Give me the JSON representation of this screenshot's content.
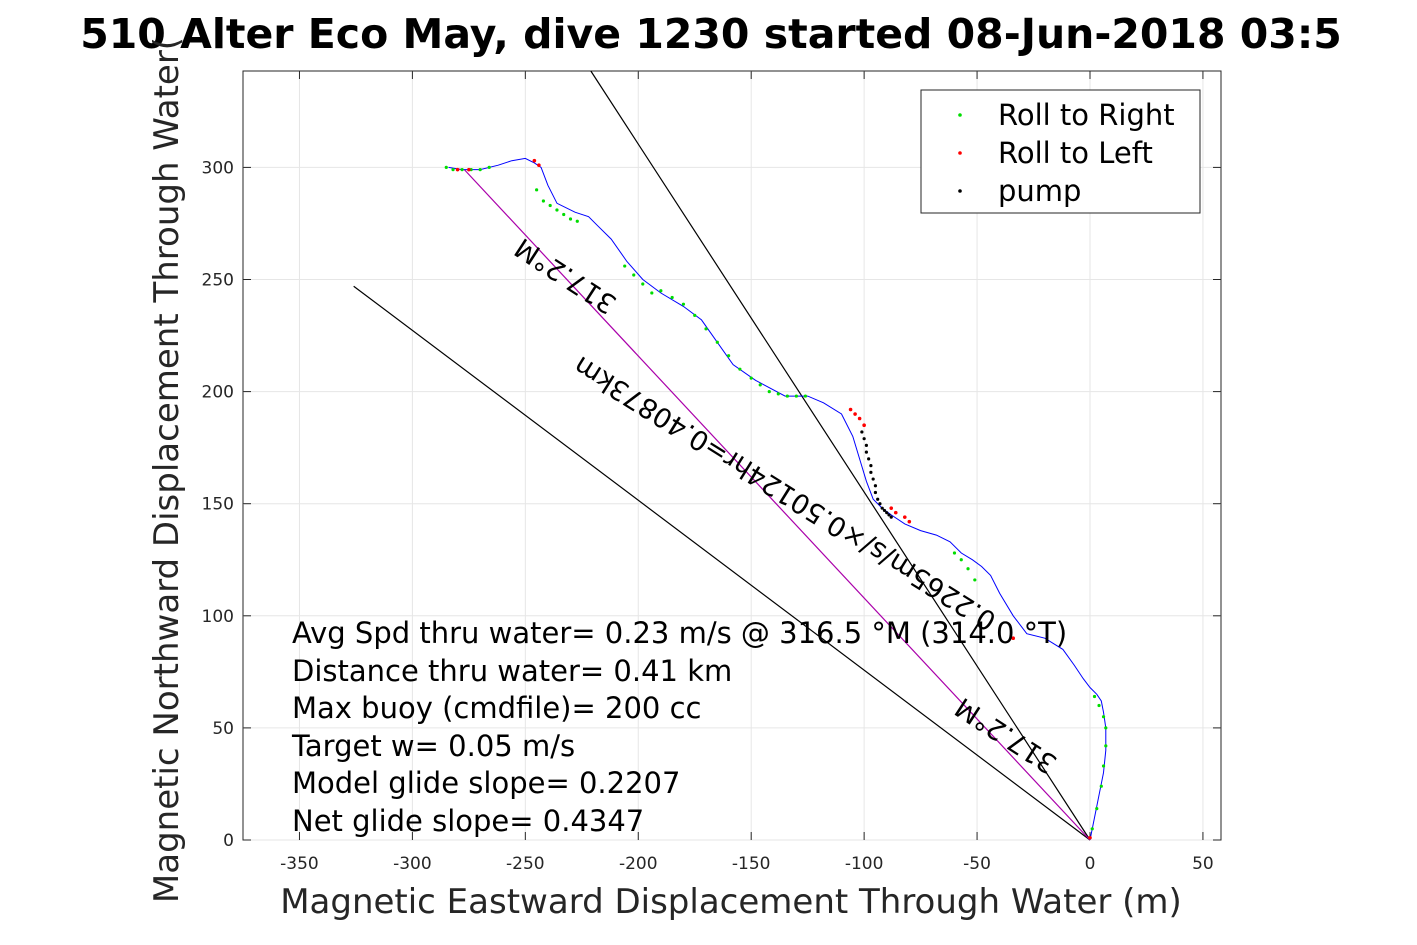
{
  "chart_data": {
    "type": "line",
    "title": "510 Alter Eco May, dive 1230 started 08-Jun-2018 03:5",
    "xlabel": "Magnetic Eastward Displacement Through Water (m)",
    "ylabel": "Magnetic Northward Displacement Through Water(",
    "xlim": [
      -375,
      58
    ],
    "ylim": [
      0,
      343
    ],
    "xticks": [
      -350,
      -300,
      -250,
      -200,
      -150,
      -100,
      -50,
      0,
      50
    ],
    "yticks": [
      0,
      50,
      100,
      150,
      200,
      250,
      300
    ],
    "xtick_labels": [
      "-350",
      "-300",
      "-250",
      "-200",
      "-150",
      "-100",
      "-50",
      "0",
      "50"
    ],
    "ytick_labels": [
      "0",
      "50",
      "100",
      "150",
      "200",
      "250",
      "300"
    ],
    "grid": true,
    "legend": {
      "location": "top-right",
      "entries": [
        {
          "label": "Roll to Right",
          "color": "#00dd00"
        },
        {
          "label": "Roll to Left",
          "color": "#ff0000"
        },
        {
          "label": "pump",
          "color": "#000000"
        }
      ]
    },
    "track": {
      "color": "#0000ff",
      "x": [
        0,
        2,
        4,
        6,
        7,
        7,
        6,
        5,
        3,
        0,
        -3,
        -7,
        -12,
        -20,
        -28,
        -34,
        -40,
        -44,
        -48,
        -52,
        -57,
        -62,
        -68,
        -75,
        -82,
        -88,
        -92,
        -96,
        -99,
        -102,
        -105,
        -110,
        -118,
        -125,
        -135,
        -148,
        -158,
        -165,
        -172,
        -180,
        -190,
        -198,
        -205,
        -212,
        -218,
        -222,
        -228,
        -236,
        -240,
        -243,
        -246,
        -250,
        -256,
        -262,
        -270,
        -278,
        -284
      ],
      "y": [
        0,
        10,
        20,
        30,
        40,
        50,
        57,
        62,
        65,
        68,
        72,
        78,
        85,
        90,
        92,
        100,
        110,
        118,
        122,
        125,
        128,
        133,
        136,
        138,
        141,
        145,
        148,
        152,
        160,
        170,
        180,
        190,
        195,
        198,
        198,
        205,
        212,
        222,
        232,
        238,
        244,
        250,
        258,
        268,
        274,
        278,
        280,
        284,
        292,
        300,
        302,
        304,
        303,
        301,
        299,
        299,
        300
      ]
    },
    "markers": {
      "roll_right": {
        "color": "#00dd00",
        "x": [
          1,
          3,
          5,
          6,
          7,
          7,
          6,
          4,
          2,
          -60,
          -57,
          -54,
          -51,
          -190,
          -185,
          -180,
          -175,
          -170,
          -165,
          -160,
          -155,
          -150,
          -146,
          -142,
          -138,
          -134,
          -130,
          -126,
          -245,
          -242,
          -239,
          -236,
          -233,
          -230,
          -227,
          -266,
          -270,
          -274,
          -278,
          -282,
          -285,
          -206,
          -202,
          -198,
          -194
        ],
        "y": [
          5,
          14,
          24,
          33,
          42,
          50,
          55,
          60,
          64,
          128,
          125,
          121,
          116,
          245,
          242,
          239,
          234,
          228,
          222,
          216,
          210,
          206,
          203,
          200,
          199,
          198,
          198,
          198,
          290,
          285,
          283,
          281,
          279,
          277,
          276,
          300,
          299,
          299,
          299,
          299,
          300,
          256,
          252,
          248,
          244
        ]
      },
      "roll_left": {
        "color": "#ff0000",
        "x": [
          -106,
          -104,
          -102,
          -100,
          -82,
          -80,
          -86,
          -88,
          -34,
          -246,
          -244,
          -280,
          -275,
          0
        ],
        "y": [
          192,
          190,
          188,
          185,
          144,
          142,
          146,
          148,
          90,
          303,
          301,
          299,
          299,
          1
        ],
        "r": 1.8
      },
      "pump": {
        "color": "#000000",
        "x": [
          -101,
          -100,
          -99,
          -99,
          -98,
          -97,
          -97,
          -96,
          -95,
          -95,
          -94,
          -93,
          -92,
          -91,
          -90,
          -89,
          -88
        ],
        "y": [
          182,
          179,
          176,
          173,
          170,
          167,
          164,
          161,
          158,
          155,
          152,
          150,
          148,
          147,
          146,
          145,
          144
        ]
      }
    },
    "reference_lines": [
      {
        "name": "",
        "color": "#000000",
        "x": [
          0,
          -221
        ],
        "y": [
          0,
          343
        ]
      },
      {
        "name": "",
        "color": "#000000",
        "x": [
          0,
          -326
        ],
        "y": [
          0,
          247
        ]
      },
      {
        "name": "",
        "color": "#aa00aa",
        "x": [
          0,
          -277
        ],
        "y": [
          0,
          299
        ]
      }
    ],
    "rotated_labels": [
      {
        "text": "317.2°M",
        "x": -230,
        "y": 255,
        "angle": 213
      },
      {
        "text": "0.2265m/s/×0.50124hr=0.40873km",
        "x": -133,
        "y": 158,
        "angle": 212
      },
      {
        "text": "317.2°M",
        "x": -35,
        "y": 50,
        "angle": 213
      }
    ],
    "annotations": [
      "Avg Spd thru water=  0.23 m/s @ 316.5 °M (314.0 °T)",
      "Distance thru water=  0.41 km",
      "Max buoy (cmdfile)= 200 cc",
      "Target w= 0.05 m/s",
      "Model glide slope= 0.2207",
      "Net glide slope= 0.4347"
    ]
  }
}
